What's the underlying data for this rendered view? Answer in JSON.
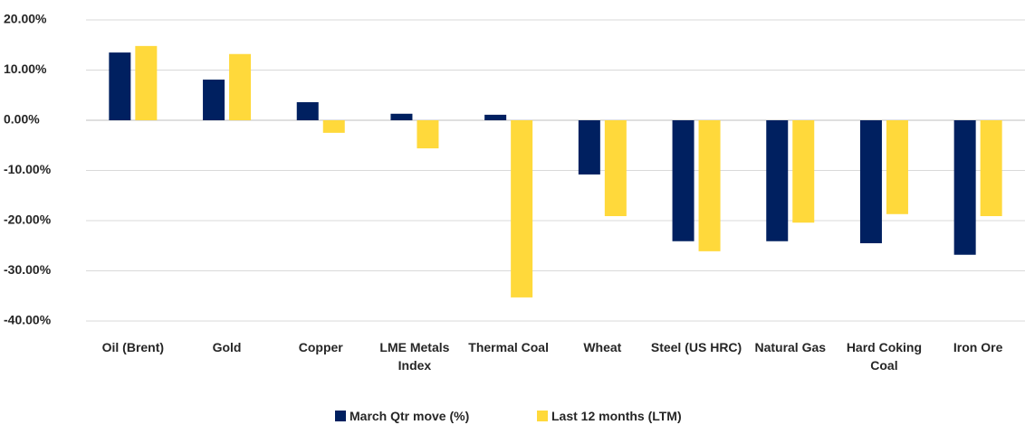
{
  "chart_data": {
    "type": "bar",
    "categories": [
      "Oil (Brent)",
      "Gold",
      "Copper",
      "LME Metals Index",
      "Thermal Coal",
      "Wheat",
      "Steel (US HRC)",
      "Natural Gas",
      "Hard Coking Coal",
      "Iron Ore"
    ],
    "series": [
      {
        "name": "March Qtr move (%)",
        "color": "#002060",
        "values": [
          13.5,
          8.1,
          3.6,
          1.3,
          1.1,
          -10.8,
          -24.1,
          -24.1,
          -24.5,
          -26.8
        ]
      },
      {
        "name": "Last 12 months (LTM)",
        "color": "#FFD93B",
        "values": [
          14.8,
          13.2,
          -2.5,
          -5.6,
          -35.3,
          -19.1,
          -26.1,
          -20.4,
          -18.7,
          -19.1
        ]
      }
    ],
    "ylim": [
      -40,
      20
    ],
    "yticks": [
      {
        "value": -40,
        "label": "-40.00%"
      },
      {
        "value": -30,
        "label": "-30.00%"
      },
      {
        "value": -20,
        "label": "-20.00%"
      },
      {
        "value": -10,
        "label": "-10.00%"
      },
      {
        "value": 0,
        "label": "0.00%"
      },
      {
        "value": 10,
        "label": "10.00%"
      },
      {
        "value": 20,
        "label": "20.00%"
      }
    ],
    "grid": true,
    "legend": "bottom"
  }
}
